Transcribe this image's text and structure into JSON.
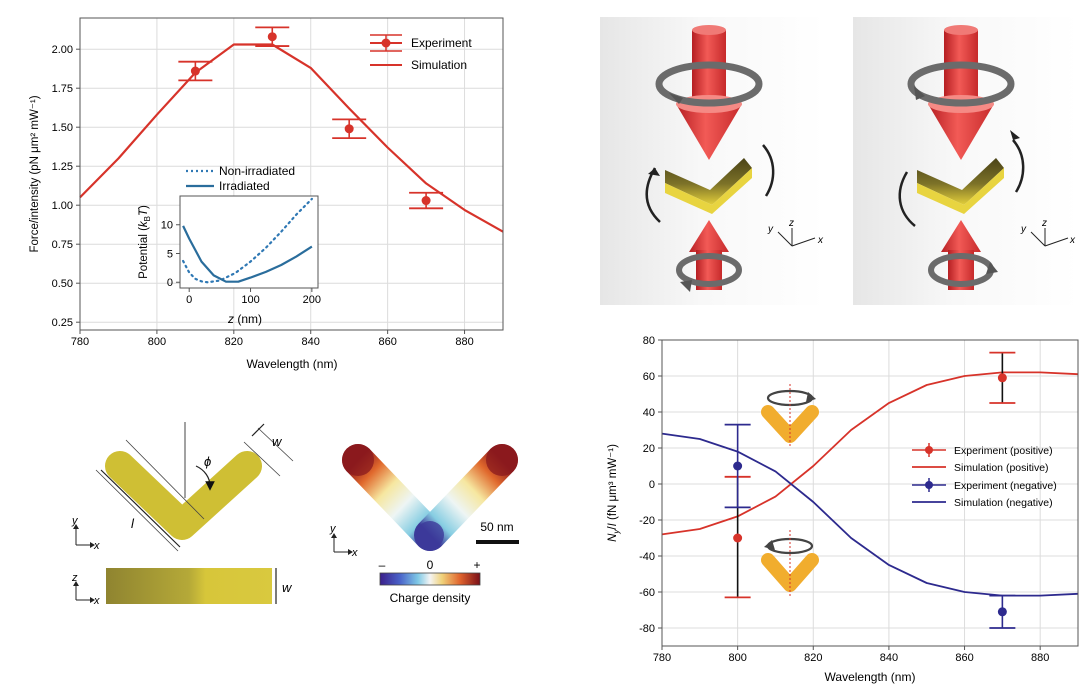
{
  "chart_data": [
    {
      "id": "force",
      "type": "line",
      "xlabel": "Wavelength (nm)",
      "ylabel": "Force/intensity (pN μm² mW⁻¹)",
      "xlim": [
        780,
        890
      ],
      "ylim": [
        0.2,
        2.2
      ],
      "xticks": [
        780,
        800,
        820,
        840,
        860,
        880
      ],
      "yticks": [
        0.25,
        0.5,
        0.75,
        1.0,
        1.25,
        1.5,
        1.75,
        2.0
      ],
      "ytick_labels": [
        "0.25",
        "0.50",
        "0.75",
        "1.00",
        "1.25",
        "1.50",
        "1.75",
        "2.00"
      ],
      "grid": true,
      "legend_position": "top-right",
      "series": [
        {
          "name": "Experiment",
          "kind": "errorbar",
          "color": "#d7332a",
          "x": [
            810,
            830,
            850,
            870
          ],
          "y": [
            1.86,
            2.08,
            1.49,
            1.03
          ],
          "err": [
            0.06,
            0.06,
            0.06,
            0.05
          ]
        },
        {
          "name": "Simulation",
          "kind": "line",
          "color": "#d7332a",
          "x": [
            780,
            790,
            800,
            810,
            820,
            830,
            840,
            850,
            860,
            870,
            880,
            890
          ],
          "y": [
            1.05,
            1.3,
            1.58,
            1.85,
            2.03,
            2.03,
            1.88,
            1.62,
            1.37,
            1.14,
            0.97,
            0.83
          ]
        }
      ]
    },
    {
      "id": "potential",
      "type": "line",
      "xlabel": "z (nm)",
      "ylabel": "Potential (kBT)",
      "xlim": [
        -15,
        210
      ],
      "ylim": [
        -1,
        15
      ],
      "xticks": [
        0,
        100,
        200
      ],
      "yticks": [
        0,
        5,
        10
      ],
      "legend_position": "top",
      "series": [
        {
          "name": "Non-irradiated",
          "style": "dotted",
          "color": "#2f78b4",
          "x": [
            -10,
            0,
            10,
            20,
            30,
            50,
            75,
            100,
            125,
            150,
            175,
            200
          ],
          "y": [
            3.7,
            1.7,
            0.6,
            0.15,
            0.0,
            0.3,
            1.6,
            3.6,
            6.0,
            8.8,
            11.8,
            14.5
          ]
        },
        {
          "name": "Irradiated",
          "style": "solid",
          "color": "#2a6d9c",
          "x": [
            -10,
            0,
            20,
            40,
            60,
            80,
            100,
            125,
            150,
            175,
            200
          ],
          "y": [
            9.8,
            7.6,
            3.6,
            1.2,
            0.1,
            0.1,
            0.8,
            1.8,
            3.0,
            4.5,
            6.2
          ]
        }
      ]
    },
    {
      "id": "torque",
      "type": "line",
      "xlabel": "Wavelength (nm)",
      "ylabel": "Ny/I (fN μm³ mW⁻¹)",
      "xlim": [
        780,
        890
      ],
      "ylim": [
        -90,
        80
      ],
      "xticks": [
        780,
        800,
        820,
        840,
        860,
        880
      ],
      "yticks": [
        -80,
        -60,
        -40,
        -20,
        0,
        20,
        40,
        60,
        80
      ],
      "grid": true,
      "legend_position": "center-right",
      "series": [
        {
          "name": "Experiment (positive)",
          "kind": "errorbar",
          "color": "#d7332a",
          "bar_color": "#111111",
          "x": [
            800,
            870
          ],
          "y": [
            -30,
            59
          ],
          "err_low": [
            33,
            14
          ],
          "err_high": [
            34,
            14
          ]
        },
        {
          "name": "Simulation (positive)",
          "kind": "line",
          "color": "#d7332a",
          "x": [
            780,
            790,
            800,
            810,
            820,
            830,
            840,
            850,
            860,
            870,
            880,
            890
          ],
          "y": [
            -28,
            -25,
            -18,
            -7,
            10,
            30,
            45,
            55,
            60,
            62,
            62,
            61
          ]
        },
        {
          "name": "Experiment (negative)",
          "kind": "errorbar",
          "color": "#2d2a8e",
          "bar_color": "#2d2a8e",
          "x": [
            800,
            870
          ],
          "y": [
            10,
            -71
          ],
          "err_low": [
            23,
            9
          ],
          "err_high": [
            23,
            9
          ]
        },
        {
          "name": "Simulation (negative)",
          "kind": "line",
          "color": "#2d2a8e",
          "x": [
            780,
            790,
            800,
            810,
            820,
            830,
            840,
            850,
            860,
            870,
            880,
            890
          ],
          "y": [
            28,
            25,
            18,
            7,
            -10,
            -30,
            -45,
            -55,
            -60,
            -62,
            -62,
            -61
          ]
        }
      ]
    }
  ],
  "schematic": {
    "phi": "ϕ",
    "w_top": "w",
    "l": "l",
    "w_side": "w",
    "scale_bar": "50 nm",
    "colorbar_minus": "–",
    "colorbar_zero": "0",
    "colorbar_plus": "+",
    "colorbar_label": "Charge density",
    "axis_y": "y",
    "axis_x": "x",
    "axis_z": "z"
  },
  "colors": {
    "red": "#d7332a",
    "navy": "#2d2a8e",
    "gold": "#d2c23b",
    "orange": "#f1ad2e",
    "laser": "#e84a4a",
    "ring": "#6b6b6b"
  }
}
